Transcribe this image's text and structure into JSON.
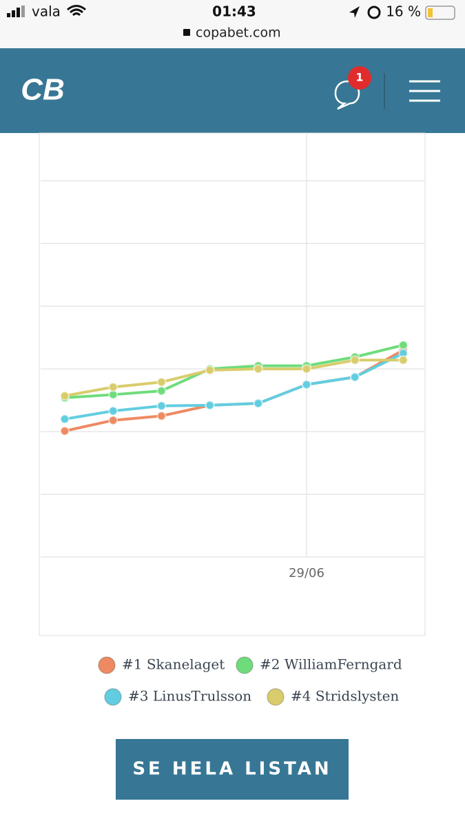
{
  "status_bar": {
    "carrier": "vala",
    "time": "01:43",
    "battery": "16 %",
    "url": "copabet.com"
  },
  "header": {
    "logo": "CB",
    "notifications": "1"
  },
  "chart_data": {
    "type": "line",
    "categories": [
      null,
      null,
      null,
      null,
      null,
      "29/06",
      null,
      null
    ],
    "ylim": [
      0,
      6.74
    ],
    "ygrid": [
      1,
      2,
      3,
      4,
      5,
      6
    ],
    "series": [
      {
        "name": "#1 Skanelaget",
        "color": "#ee8a62",
        "values": [
          2.01,
          2.18,
          2.25,
          2.42,
          2.45,
          2.75,
          2.87,
          3.3
        ]
      },
      {
        "name": "#2 WilliamFerngard",
        "color": "#6fdc7c",
        "values": [
          2.54,
          2.59,
          2.65,
          3.0,
          3.05,
          3.05,
          3.19,
          3.38
        ]
      },
      {
        "name": "#3 LinusTrulsson",
        "color": "#62cde0",
        "values": [
          2.2,
          2.33,
          2.41,
          2.42,
          2.45,
          2.75,
          2.87,
          3.25
        ]
      },
      {
        "name": "#4 Stridslysten",
        "color": "#d9cc6c",
        "values": [
          2.57,
          2.71,
          2.79,
          2.98,
          3.0,
          3.0,
          3.14,
          3.14
        ]
      }
    ]
  },
  "button": {
    "label": "SE HELA LISTAN"
  }
}
